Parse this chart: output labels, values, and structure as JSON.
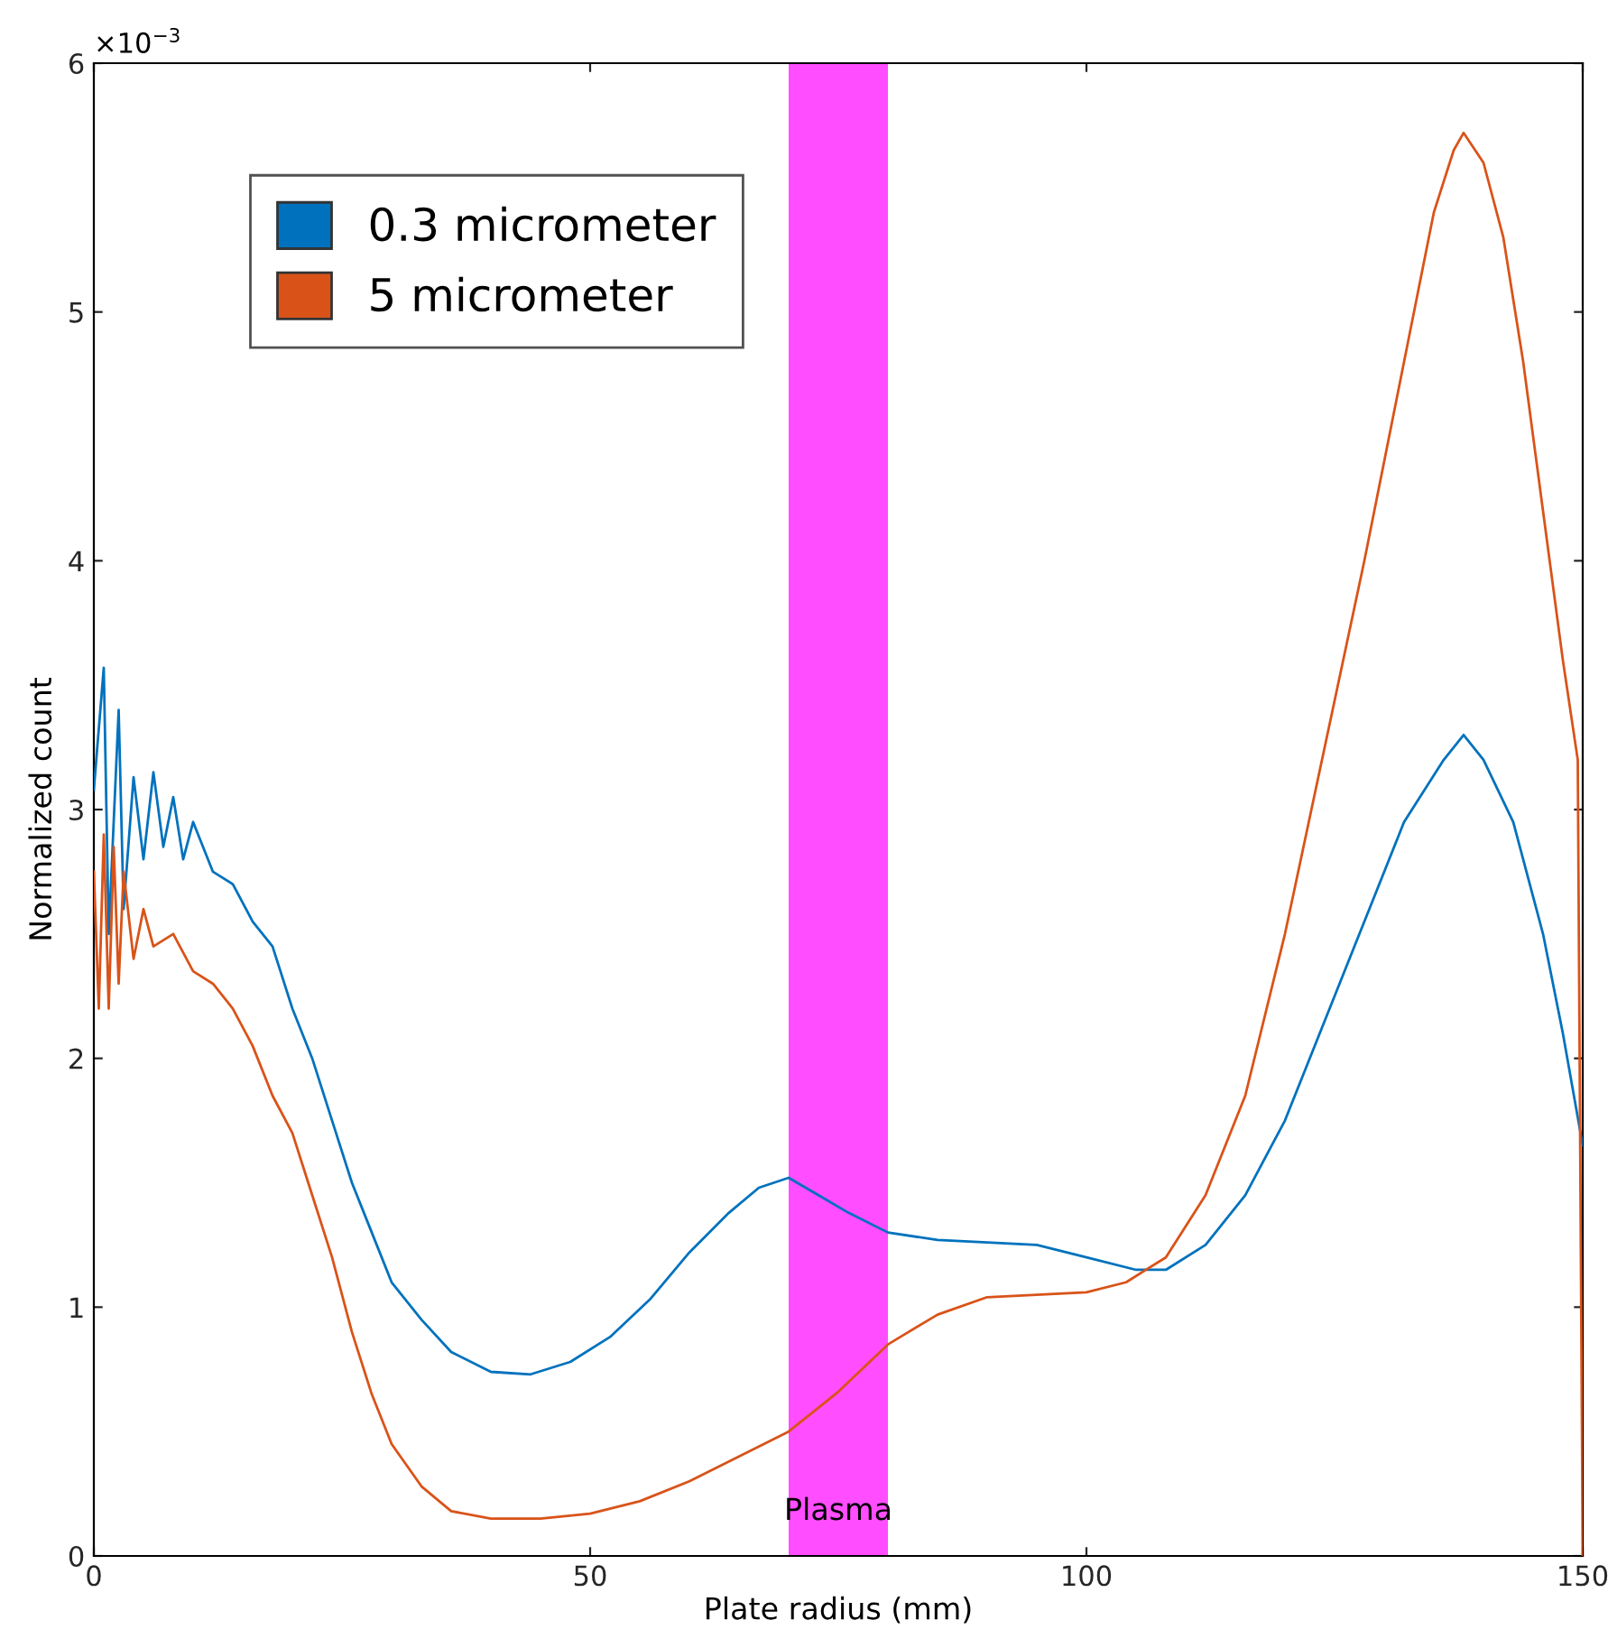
{
  "chart_data": {
    "type": "line",
    "xlabel": "Plate radius (mm)",
    "ylabel": "Normalized count",
    "annotations": [
      "×10$^{−3}$"
    ],
    "xlim": [
      0,
      150
    ],
    "xticks": [
      0,
      50,
      100,
      150
    ],
    "ylim": [
      0,
      6
    ],
    "yticks": [
      0,
      1,
      2,
      3,
      4,
      5,
      6
    ],
    "grid": false,
    "legend": "top left",
    "marker": "none",
    "line_style": "solid",
    "bands": [
      {
        "axis": "x",
        "from": 70,
        "to": 80,
        "label": "Plasma",
        "color": "#ff4dff"
      }
    ],
    "series": [
      {
        "name": "0.3 micrometer",
        "color": "#0072bd",
        "x": [
          0,
          1,
          1.5,
          2.5,
          3,
          4,
          5,
          6,
          7,
          8,
          9,
          10,
          12,
          14,
          16,
          18,
          20,
          22,
          24,
          26,
          28,
          30,
          33,
          36,
          40,
          44,
          48,
          52,
          56,
          60,
          64,
          67,
          70,
          73,
          76,
          80,
          85,
          90,
          95,
          100,
          105,
          108,
          112,
          116,
          120,
          124,
          128,
          132,
          136,
          138,
          140,
          143,
          146,
          148,
          150
        ],
        "values": [
          3.08,
          3.57,
          2.5,
          3.4,
          2.6,
          3.13,
          2.8,
          3.15,
          2.85,
          3.05,
          2.8,
          2.95,
          2.75,
          2.7,
          2.55,
          2.45,
          2.2,
          2.0,
          1.75,
          1.5,
          1.3,
          1.1,
          0.95,
          0.82,
          0.74,
          0.73,
          0.78,
          0.88,
          1.03,
          1.22,
          1.38,
          1.48,
          1.52,
          1.45,
          1.38,
          1.3,
          1.27,
          1.26,
          1.25,
          1.2,
          1.15,
          1.15,
          1.25,
          1.45,
          1.75,
          2.15,
          2.55,
          2.95,
          3.2,
          3.3,
          3.2,
          2.95,
          2.5,
          2.1,
          1.65
        ]
      },
      {
        "name": "5 micrometer",
        "color": "#d95319",
        "x": [
          0,
          0.5,
          1,
          1.5,
          2,
          2.5,
          3,
          4,
          5,
          6,
          8,
          10,
          12,
          14,
          16,
          18,
          20,
          22,
          24,
          26,
          28,
          30,
          33,
          36,
          40,
          45,
          50,
          55,
          60,
          65,
          70,
          75,
          80,
          85,
          90,
          95,
          100,
          104,
          108,
          112,
          116,
          120,
          124,
          128,
          132,
          135,
          137,
          138,
          140,
          142,
          144,
          146,
          148,
          149.5,
          150
        ],
        "values": [
          2.75,
          2.2,
          2.9,
          2.2,
          2.85,
          2.3,
          2.75,
          2.4,
          2.6,
          2.45,
          2.5,
          2.35,
          2.3,
          2.2,
          2.05,
          1.85,
          1.7,
          1.45,
          1.2,
          0.9,
          0.65,
          0.45,
          0.28,
          0.18,
          0.15,
          0.15,
          0.17,
          0.22,
          0.3,
          0.4,
          0.5,
          0.66,
          0.85,
          0.97,
          1.04,
          1.05,
          1.06,
          1.1,
          1.2,
          1.45,
          1.85,
          2.5,
          3.25,
          4.0,
          4.8,
          5.4,
          5.65,
          5.72,
          5.6,
          5.3,
          4.8,
          4.2,
          3.6,
          3.2,
          0
        ]
      }
    ]
  }
}
